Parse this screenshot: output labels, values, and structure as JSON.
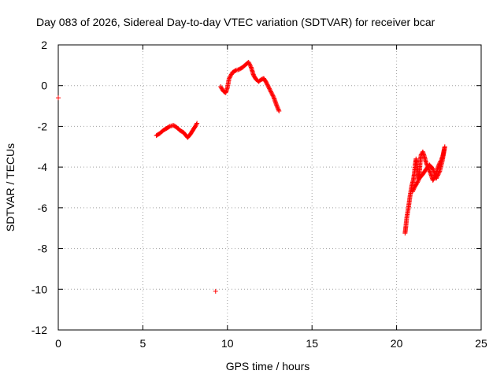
{
  "chart_data": {
    "type": "scatter",
    "title": "Day 083 of 2026, Sidereal Day-to-day VTEC variation (SDTVAR) for receiver bcar",
    "xlabel": "GPS time / hours",
    "ylabel": "SDTVAR / TECUs",
    "xlim": [
      0,
      25
    ],
    "ylim": [
      -12,
      2
    ],
    "xticks": [
      0,
      5,
      10,
      15,
      20,
      25
    ],
    "yticks": [
      2,
      0,
      -2,
      -4,
      -6,
      -8,
      -10,
      -12
    ],
    "grid": true,
    "marker": "+",
    "color": "#ff0000",
    "segments": [
      [
        [
          0.0,
          -0.6
        ]
      ],
      [
        [
          5.8,
          -2.45
        ],
        [
          6.0,
          -2.35
        ],
        [
          6.2,
          -2.2
        ],
        [
          6.4,
          -2.1
        ],
        [
          6.6,
          -2.0
        ],
        [
          6.8,
          -1.95
        ],
        [
          7.0,
          -2.05
        ],
        [
          7.2,
          -2.2
        ],
        [
          7.4,
          -2.3
        ],
        [
          7.5,
          -2.4
        ],
        [
          7.65,
          -2.55
        ],
        [
          7.8,
          -2.4
        ],
        [
          7.95,
          -2.2
        ],
        [
          8.1,
          -2.0
        ],
        [
          8.2,
          -1.85
        ]
      ],
      [
        [
          9.3,
          -10.1
        ]
      ],
      [
        [
          9.6,
          -0.05
        ],
        [
          9.7,
          -0.2
        ],
        [
          9.8,
          -0.3
        ],
        [
          9.9,
          -0.35
        ],
        [
          10.0,
          -0.1
        ],
        [
          10.1,
          0.35
        ],
        [
          10.3,
          0.65
        ],
        [
          10.5,
          0.75
        ],
        [
          10.7,
          0.8
        ],
        [
          10.9,
          0.9
        ],
        [
          11.1,
          1.05
        ],
        [
          11.25,
          1.15
        ],
        [
          11.4,
          0.9
        ],
        [
          11.55,
          0.5
        ],
        [
          11.7,
          0.3
        ],
        [
          11.85,
          0.2
        ],
        [
          12.0,
          0.3
        ],
        [
          12.15,
          0.35
        ],
        [
          12.3,
          0.15
        ],
        [
          12.45,
          -0.1
        ],
        [
          12.6,
          -0.35
        ],
        [
          12.75,
          -0.6
        ],
        [
          12.9,
          -0.95
        ],
        [
          13.05,
          -1.25
        ]
      ],
      [
        [
          20.5,
          -7.25
        ],
        [
          20.55,
          -6.9
        ],
        [
          20.6,
          -6.5
        ],
        [
          20.7,
          -6.0
        ],
        [
          20.8,
          -5.4
        ],
        [
          20.9,
          -4.9
        ],
        [
          21.0,
          -4.6
        ],
        [
          21.05,
          -4.3
        ],
        [
          21.1,
          -3.9
        ],
        [
          21.15,
          -3.6
        ],
        [
          21.2,
          -3.8
        ],
        [
          21.25,
          -4.2
        ],
        [
          21.3,
          -4.6
        ],
        [
          21.35,
          -4.3
        ],
        [
          21.4,
          -3.7
        ],
        [
          21.45,
          -3.4
        ],
        [
          21.55,
          -3.25
        ],
        [
          21.65,
          -3.5
        ],
        [
          21.75,
          -3.8
        ],
        [
          21.85,
          -4.0
        ],
        [
          21.95,
          -4.2
        ],
        [
          22.05,
          -4.4
        ],
        [
          22.15,
          -4.65
        ],
        [
          22.25,
          -4.5
        ],
        [
          22.35,
          -4.3
        ],
        [
          22.45,
          -4.0
        ],
        [
          22.55,
          -3.8
        ],
        [
          22.65,
          -3.65
        ],
        [
          22.75,
          -3.4
        ],
        [
          22.85,
          -3.0
        ],
        [
          22.7,
          -3.7
        ],
        [
          22.55,
          -4.2
        ],
        [
          22.35,
          -4.55
        ],
        [
          22.15,
          -4.1
        ],
        [
          21.95,
          -3.9
        ],
        [
          21.75,
          -4.1
        ],
        [
          21.55,
          -4.35
        ],
        [
          21.35,
          -4.55
        ],
        [
          21.2,
          -4.8
        ],
        [
          21.05,
          -5.0
        ],
        [
          20.95,
          -5.2
        ]
      ]
    ]
  }
}
